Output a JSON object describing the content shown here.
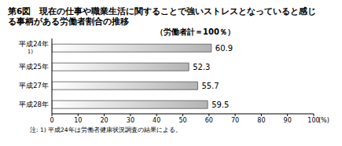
{
  "chart_data": {
    "type": "bar",
    "orientation": "horizontal",
    "title": "第6図　現在の仕事や職業生活に関することで強いストレスとなっていると感じる事柄がある労働者割合の推移",
    "subtitle": "（労働者計＝100％）",
    "categories": [
      "平成24年 1)",
      "平成25年",
      "平成27年",
      "平成28年"
    ],
    "values": [
      60.9,
      52.3,
      55.7,
      59.5
    ],
    "color": "#b4b4b4",
    "xlim": [
      0,
      100
    ],
    "xticks": [
      0,
      10,
      20,
      30,
      40,
      50,
      60,
      70,
      80,
      90,
      100
    ],
    "xlabel": "(%)",
    "annotations": [
      "注: 1) 平成24年は労働者健康状況調査の結果による。"
    ],
    "data_labels": true,
    "grid": false
  }
}
